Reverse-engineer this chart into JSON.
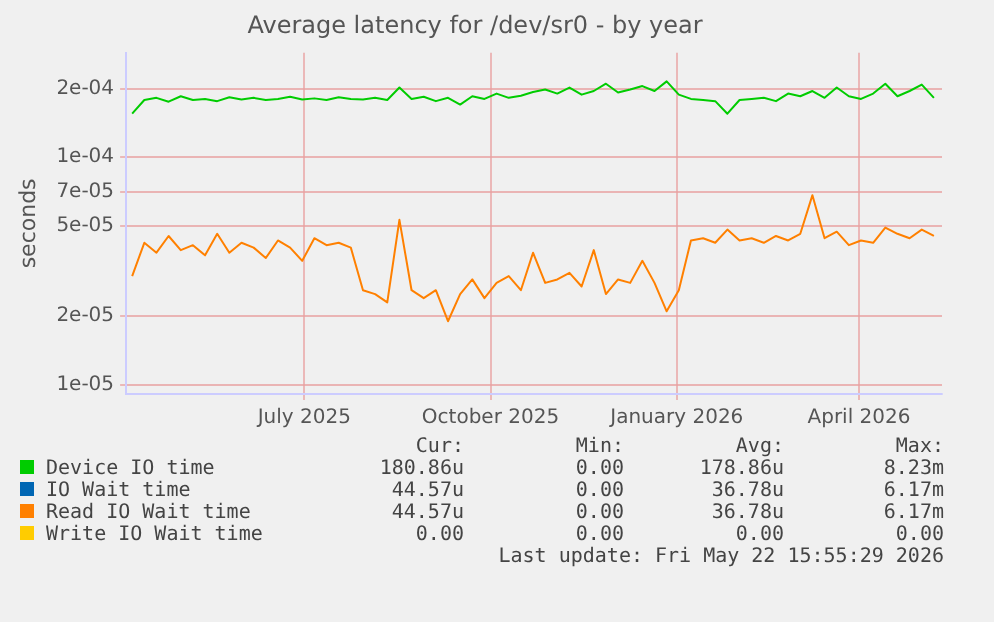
{
  "chart_data": {
    "type": "line",
    "title": "Average latency for /dev/sr0 - by year",
    "ylabel": "seconds",
    "x": [
      "2025-04-07",
      "2025-04-13",
      "2025-04-19",
      "2025-04-25",
      "2025-05-01",
      "2025-05-07",
      "2025-05-13",
      "2025-05-19",
      "2025-05-25",
      "2025-05-31",
      "2025-06-06",
      "2025-06-12",
      "2025-06-18",
      "2025-06-24",
      "2025-06-30",
      "2025-07-06",
      "2025-07-12",
      "2025-07-18",
      "2025-07-24",
      "2025-07-30",
      "2025-08-05",
      "2025-08-11",
      "2025-08-17",
      "2025-08-23",
      "2025-08-29",
      "2025-09-04",
      "2025-09-10",
      "2025-09-16",
      "2025-09-22",
      "2025-09-28",
      "2025-10-04",
      "2025-10-10",
      "2025-10-16",
      "2025-10-22",
      "2025-10-28",
      "2025-11-03",
      "2025-11-09",
      "2025-11-15",
      "2025-11-21",
      "2025-11-27",
      "2025-12-03",
      "2025-12-09",
      "2025-12-15",
      "2025-12-21",
      "2025-12-27",
      "2026-01-02",
      "2026-01-08",
      "2026-01-14",
      "2026-01-20",
      "2026-01-26",
      "2026-02-01",
      "2026-02-07",
      "2026-02-13",
      "2026-02-19",
      "2026-02-25",
      "2026-03-03",
      "2026-03-09",
      "2026-03-15",
      "2026-03-21",
      "2026-03-27",
      "2026-04-02",
      "2026-04-08",
      "2026-04-14",
      "2026-04-20",
      "2026-04-26",
      "2026-05-02",
      "2026-05-08"
    ],
    "series": [
      {
        "name": "Device IO time",
        "color": "#00cc00",
        "values": [
          0.000155,
          0.000178,
          0.000182,
          0.000175,
          0.000185,
          0.000178,
          0.00018,
          0.000176,
          0.000183,
          0.000179,
          0.000182,
          0.000178,
          0.00018,
          0.000184,
          0.000179,
          0.000181,
          0.000178,
          0.000183,
          0.00018,
          0.000179,
          0.000182,
          0.000178,
          0.000202,
          0.00018,
          0.000184,
          0.000176,
          0.000182,
          0.00017,
          0.000185,
          0.00018,
          0.00019,
          0.000182,
          0.000186,
          0.000193,
          0.000198,
          0.00019,
          0.000202,
          0.000188,
          0.000195,
          0.00021,
          0.000192,
          0.000198,
          0.000205,
          0.000195,
          0.000215,
          0.000188,
          0.00018,
          0.000178,
          0.000176,
          0.000155,
          0.000178,
          0.00018,
          0.000182,
          0.000176,
          0.00019,
          0.000185,
          0.000195,
          0.000182,
          0.000202,
          0.000185,
          0.00018,
          0.00019,
          0.00021,
          0.000185,
          0.000195,
          0.000208,
          0.000182
        ]
      },
      {
        "name": "IO Wait time",
        "color": "#0066b3",
        "values": [
          null,
          null,
          null,
          null,
          null,
          null,
          null,
          null,
          null,
          null,
          null,
          null,
          null,
          null,
          null,
          null,
          null,
          null,
          null,
          null,
          null,
          null,
          null,
          null,
          null,
          null,
          null,
          null,
          null,
          null,
          null,
          null,
          null,
          null,
          null,
          null,
          null,
          null,
          null,
          null,
          null,
          null,
          null,
          null,
          null,
          null,
          null,
          null,
          null,
          null,
          null,
          null,
          null,
          null,
          null,
          null,
          null,
          null,
          null,
          null,
          null,
          null,
          null,
          null,
          null,
          null,
          null
        ]
      },
      {
        "name": "Read IO Wait time",
        "color": "#ff8000",
        "values": [
          3e-05,
          4.2e-05,
          3.8e-05,
          4.5e-05,
          3.9e-05,
          4.1e-05,
          3.7e-05,
          4.6e-05,
          3.8e-05,
          4.2e-05,
          4e-05,
          3.6e-05,
          4.3e-05,
          4e-05,
          3.5e-05,
          4.4e-05,
          4.1e-05,
          4.2e-05,
          4e-05,
          2.6e-05,
          2.5e-05,
          2.3e-05,
          5.3e-05,
          2.6e-05,
          2.4e-05,
          2.6e-05,
          1.9e-05,
          2.5e-05,
          2.9e-05,
          2.4e-05,
          2.8e-05,
          3e-05,
          2.6e-05,
          3.8e-05,
          2.8e-05,
          2.9e-05,
          3.1e-05,
          2.7e-05,
          3.9e-05,
          2.5e-05,
          2.9e-05,
          2.8e-05,
          3.5e-05,
          2.8e-05,
          2.1e-05,
          2.6e-05,
          4.3e-05,
          4.4e-05,
          4.2e-05,
          4.8e-05,
          4.3e-05,
          4.4e-05,
          4.2e-05,
          4.5e-05,
          4.3e-05,
          4.6e-05,
          6.8e-05,
          4.4e-05,
          4.7e-05,
          4.1e-05,
          4.3e-05,
          4.2e-05,
          4.9e-05,
          4.6e-05,
          4.4e-05,
          4.8e-05,
          4.5e-05
        ]
      },
      {
        "name": "Write IO Wait time",
        "color": "#ffcc00",
        "values": [
          null,
          null,
          null,
          null,
          null,
          null,
          null,
          null,
          null,
          null,
          null,
          null,
          null,
          null,
          null,
          null,
          null,
          null,
          null,
          null,
          null,
          null,
          null,
          null,
          null,
          null,
          null,
          null,
          null,
          null,
          null,
          null,
          null,
          null,
          null,
          null,
          null,
          null,
          null,
          null,
          null,
          null,
          null,
          null,
          null,
          null,
          null,
          null,
          null,
          null,
          null,
          null,
          null,
          null,
          null,
          null,
          null,
          null,
          null,
          null,
          null,
          null,
          null,
          null,
          null,
          null,
          null
        ]
      }
    ],
    "log": "y",
    "xlim": [
      "2025-04-04",
      "2026-05-12"
    ],
    "xticks": [
      {
        "value": "2025-07-01",
        "label": "July 2025"
      },
      {
        "value": "2025-10-01",
        "label": "October 2025"
      },
      {
        "value": "2026-01-01",
        "label": "January 2026"
      },
      {
        "value": "2026-04-01",
        "label": "April 2026"
      }
    ],
    "ylim": [
      9.1e-06,
      0.000287
    ],
    "yticks": [
      {
        "value": 1e-05,
        "label": "1e-05"
      },
      {
        "value": 2e-05,
        "label": "2e-05"
      },
      {
        "value": 5e-05,
        "label": "5e-05"
      },
      {
        "value": 7e-05,
        "label": "7e-05"
      },
      {
        "value": 0.0001,
        "label": "1e-04"
      },
      {
        "value": 0.0002,
        "label": "2e-04"
      }
    ],
    "grid": true,
    "legend": "bottom",
    "marker": "none",
    "line_style": "solid",
    "annotations": [
      "Cur:",
      "Min:",
      "Avg:",
      "Max:",
      "180.86u",
      "0.00",
      "178.86u",
      "8.23m",
      "44.57u",
      "0.00",
      "36.78u",
      "6.17m",
      "44.57u",
      "0.00",
      "36.78u",
      "6.17m",
      "0.00",
      "0.00",
      "0.00",
      "0.00",
      "Last update: Fri May 22 15:55:29 2026"
    ]
  }
}
